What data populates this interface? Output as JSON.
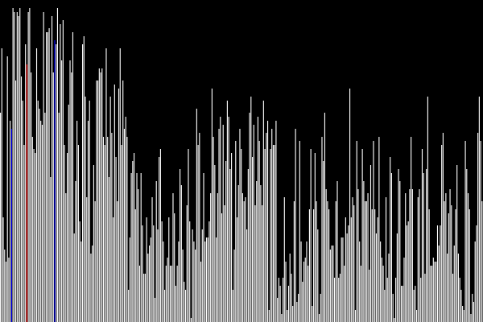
{
  "chart_data": {
    "type": "bar",
    "ylim": [
      0,
      400
    ],
    "grid": false,
    "legend": "none",
    "colors": {
      "background": "#000000",
      "bar": "#ffffff",
      "compare": "#0000ff",
      "active": "#ff0000"
    },
    "highlighted": {
      "compare": [
        0,
        1
      ],
      "active": [
        2
      ]
    },
    "values": [
      260,
      340,
      130,
      90,
      75,
      330,
      80,
      250,
      240,
      390,
      385,
      300,
      385,
      380,
      390,
      305,
      275,
      220,
      345,
      320,
      385,
      390,
      310,
      230,
      215,
      210,
      340,
      275,
      265,
      250,
      245,
      385,
      260,
      360,
      360,
      365,
      180,
      380,
      310,
      350,
      345,
      390,
      260,
      370,
      325,
      375,
      220,
      160,
      210,
      270,
      325,
      310,
      360,
      110,
      175,
      250,
      220,
      125,
      100,
      345,
      355,
      280,
      155,
      250,
      275,
      85,
      95,
      195,
      150,
      300,
      300,
      315,
      310,
      315,
      230,
      220,
      340,
      230,
      180,
      280,
      235,
      130,
      295,
      205,
      150,
      290,
      340,
      220,
      300,
      240,
      255,
      230,
      40,
      105,
      185,
      200,
      210,
      140,
      185,
      165,
      70,
      185,
      120,
      60,
      60,
      130,
      85,
      95,
      105,
      155,
      120,
      30,
      175,
      115,
      205,
      215,
      125,
      100,
      40,
      70,
      80,
      130,
      70,
      70,
      160,
      135,
      45,
      70,
      100,
      190,
      170,
      90,
      50,
      40,
      145,
      215,
      125,
      5,
      115,
      100,
      90,
      265,
      220,
      235,
      75,
      115,
      185,
      100,
      105,
      105,
      125,
      160,
      290,
      230,
      195,
      105,
      160,
      240,
      255,
      135,
      245,
      145,
      200,
      275,
      255,
      190,
      210,
      40,
      90,
      225,
      130,
      170,
      240,
      215,
      160,
      150,
      155,
      115,
      190,
      260,
      280,
      205,
      245,
      145,
      175,
      255,
      225,
      170,
      145,
      275,
      215,
      235,
      250,
      15,
      215,
      240,
      220,
      220,
      250,
      30,
      55,
      45,
      10,
      55,
      155,
      75,
      15,
      45,
      85,
      60,
      20,
      150,
      240,
      25,
      35,
      225,
      100,
      50,
      75,
      80,
      100,
      70,
      140,
      215,
      20,
      140,
      210,
      150,
      115,
      10,
      35,
      230,
      200,
      260,
      165,
      150,
      140,
      90,
      95,
      95,
      55,
      150,
      175,
      55,
      60,
      105,
      105,
      70,
      130,
      110,
      120,
      290,
      130,
      155,
      145,
      15,
      225,
      165,
      100,
      70,
      215,
      175,
      150,
      150,
      160,
      65,
      195,
      140,
      225,
      140,
      110,
      130,
      230,
      100,
      80,
      70,
      40,
      155,
      55,
      85,
      205,
      185,
      35,
      5,
      55,
      110,
      190,
      175,
      45,
      45,
      80,
      160,
      120,
      125,
      165,
      230,
      165,
      40,
      45,
      15,
      155,
      165,
      55,
      215,
      185,
      60,
      190,
      280,
      140,
      70,
      70,
      80,
      75,
      75,
      120,
      95,
      120,
      220,
      235,
      150,
      160,
      85,
      135,
      165,
      145,
      60,
      95,
      140,
      195,
      85,
      55,
      40,
      20,
      15,
      225,
      190,
      160,
      140,
      10,
      35,
      25,
      100,
      120,
      235,
      280,
      225,
      150
    ]
  }
}
